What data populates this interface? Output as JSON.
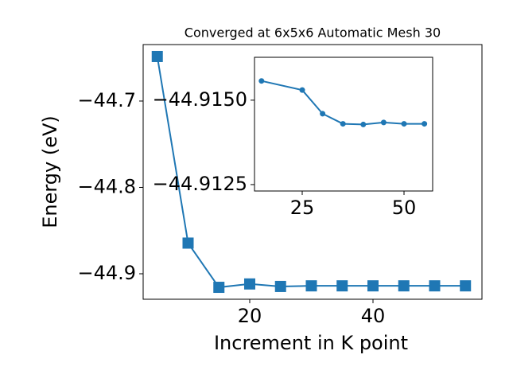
{
  "chart_data": [
    {
      "type": "line",
      "title": "Converged at 6x5x6 Automatic Mesh 30",
      "x_label": "Increment in K point",
      "y_label": "Energy (eV)",
      "x": [
        5,
        10,
        15,
        20,
        25,
        30,
        35,
        40,
        45,
        50,
        55
      ],
      "series": [
        {
          "color": "#1f77b4",
          "marker": "square",
          "values": [
            -44.6484,
            -44.8645,
            -44.9157,
            -44.9118,
            -44.9147,
            -44.914,
            -44.914,
            -44.914,
            -44.914,
            -44.914,
            -44.914
          ]
        }
      ],
      "xlim": [
        2.71,
        57.68
      ],
      "xticks": [
        20,
        40
      ],
      "ylim": [
        -44.9295,
        -44.6346
      ],
      "yticks": [
        {
          "value": -44.9,
          "label": "−44.9"
        },
        {
          "value": -44.8,
          "label": "−44.8"
        },
        {
          "value": -44.7,
          "label": "−44.7"
        }
      ]
    },
    {
      "type": "line",
      "x": [
        15,
        25,
        30,
        35,
        40,
        45,
        50,
        55
      ],
      "series": [
        {
          "color": "#1f77b4",
          "marker": "circle",
          "values": [
            -44.91557,
            -44.9153,
            -44.9146,
            -44.9143,
            -44.91428,
            -44.91434,
            -44.9143,
            -44.9143
          ]
        }
      ],
      "xlim": [
        13.28,
        57.03
      ],
      "xticks": [
        25,
        50
      ],
      "ylim": [
        -44.91231,
        -44.91627
      ],
      "yticks": [
        {
          "value": -44.915,
          "label": "−44.9150"
        },
        {
          "value": -44.9125,
          "label": "−44.9125"
        }
      ]
    }
  ]
}
